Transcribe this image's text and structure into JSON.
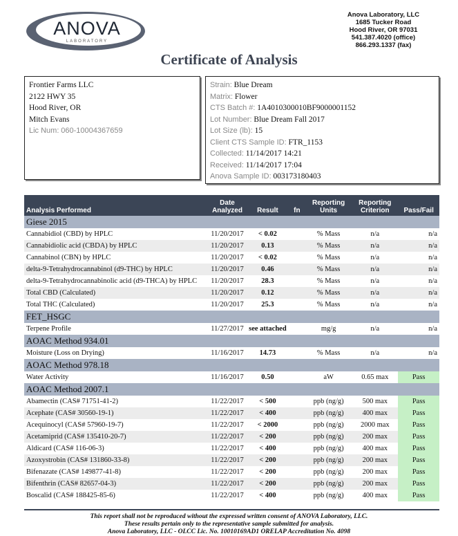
{
  "logo": {
    "text": "ANOVA",
    "sub": "LABORATORY"
  },
  "lab_address": [
    "Anova Laboratory, LLC",
    "1685 Tucker Road",
    "Hood River, OR 97031",
    "541.387.4020 (office)",
    "866.293.1337 (fax)"
  ],
  "title": "Certificate of Analysis",
  "client": {
    "name": "Frontier Farms LLC",
    "street": "2122 HWY 35",
    "city": "Hood River, OR",
    "contact": "Mitch Evans",
    "lic_label": "Lic Num:",
    "lic": "060-10004367659"
  },
  "sample": [
    {
      "label": "Strain:",
      "value": "Blue Dream"
    },
    {
      "label": "Matrix:",
      "value": "Flower"
    },
    {
      "label": "CTS Batch #:",
      "value": "1A4010300010BF9000001152"
    },
    {
      "label": "Lot Number:",
      "value": "Blue Dream Fall 2017"
    },
    {
      "label": "Lot Size (lb):",
      "value": "15"
    },
    {
      "label": "Client CTS Sample ID:",
      "value": "FTR_1153"
    },
    {
      "label": "Collected:",
      "value": "11/14/2017 14:21"
    },
    {
      "label": "Received:",
      "value": "11/14/2017 17:04"
    },
    {
      "label": "Anova Sample ID:",
      "value": "003173180403"
    }
  ],
  "table": {
    "headers": [
      "Analysis Performed",
      "Date Analyzed",
      "Result",
      "fn",
      "Reporting Units",
      "Reporting Criterion",
      "Pass/Fail"
    ],
    "sections": [
      {
        "name": "Giese 2015",
        "rows": [
          [
            "Cannabidiol (CBD) by HPLC",
            "11/20/2017",
            "< 0.02",
            "",
            "% Mass",
            "n/a",
            "n/a"
          ],
          [
            "Cannabidiolic acid (CBDA) by HPLC",
            "11/20/2017",
            "0.13",
            "",
            "% Mass",
            "n/a",
            "n/a"
          ],
          [
            "Cannabinol (CBN) by HPLC",
            "11/20/2017",
            "< 0.02",
            "",
            "% Mass",
            "n/a",
            "n/a"
          ],
          [
            "delta-9-Tetrahydrocannabinol (d9-THC) by HPLC",
            "11/20/2017",
            "0.46",
            "",
            "% Mass",
            "n/a",
            "n/a"
          ],
          [
            "delta-9-Tetrahydrocannabinolic acid (d9-THCA) by HPLC",
            "11/20/2017",
            "28.3",
            "",
            "% Mass",
            "n/a",
            "n/a"
          ],
          [
            "Total CBD (Calculated)",
            "11/20/2017",
            "0.12",
            "",
            "% Mass",
            "n/a",
            "n/a"
          ],
          [
            "Total THC (Calculated)",
            "11/20/2017",
            "25.3",
            "",
            "% Mass",
            "n/a",
            "n/a"
          ]
        ]
      },
      {
        "name": "FET_HSGC",
        "rows": [
          [
            "Terpene Profile",
            "11/27/2017",
            "see attached",
            "",
            "mg/g",
            "n/a",
            "n/a"
          ]
        ]
      },
      {
        "name": "AOAC Method 934.01",
        "rows": [
          [
            "Moisture (Loss on Drying)",
            "11/16/2017",
            "14.73",
            "",
            "% Mass",
            "n/a",
            "n/a"
          ]
        ]
      },
      {
        "name": "AOAC Method 978.18",
        "rows": [
          [
            "Water Activity",
            "11/16/2017",
            "0.50",
            "",
            "aW",
            "0.65 max",
            "Pass"
          ]
        ]
      },
      {
        "name": "AOAC Method 2007.1",
        "rows": [
          [
            "Abamectin (CAS# 71751-41-2)",
            "11/22/2017",
            "< 500",
            "",
            "ppb (ng/g)",
            "500 max",
            "Pass"
          ],
          [
            "Acephate (CAS# 30560-19-1)",
            "11/22/2017",
            "< 400",
            "",
            "ppb (ng/g)",
            "400 max",
            "Pass"
          ],
          [
            "Acequinocyl (CAS# 57960-19-7)",
            "11/22/2017",
            "< 2000",
            "",
            "ppb (ng/g)",
            "2000 max",
            "Pass"
          ],
          [
            "Acetamiprid (CAS# 135410-20-7)",
            "11/22/2017",
            "< 200",
            "",
            "ppb (ng/g)",
            "200 max",
            "Pass"
          ],
          [
            "Aldicard (CAS# 116-06-3)",
            "11/22/2017",
            "< 400",
            "",
            "ppb (ng/g)",
            "400 max",
            "Pass"
          ],
          [
            "Azoxystrobin (CAS# 131860-33-8)",
            "11/22/2017",
            "< 200",
            "",
            "ppb (ng/g)",
            "200 max",
            "Pass"
          ],
          [
            "Bifenazate (CAS# 149877-41-8)",
            "11/22/2017",
            "< 200",
            "",
            "ppb (ng/g)",
            "200 max",
            "Pass"
          ],
          [
            "Bifenthrin (CAS# 82657-04-3)",
            "11/22/2017",
            "< 200",
            "",
            "ppb (ng/g)",
            "200 max",
            "Pass"
          ],
          [
            "Boscalid (CAS# 188425-85-6)",
            "11/22/2017",
            "< 400",
            "",
            "ppb (ng/g)",
            "400 max",
            "Pass"
          ]
        ]
      }
    ]
  },
  "footer": [
    "This report shall not be reproduced without the expressed written consent of ANOVA Laboratory, LLC.",
    "These results pertain only to the representative sample submitted for analysis.",
    "Anova Laboratory, LLC - OLCC Lic. No. 10010169AD1 ORELAP Accreditation No. 4098"
  ],
  "colors": {
    "header": "#3b4556",
    "section": "#a9b3c4",
    "pass": "#c6f0c6"
  }
}
